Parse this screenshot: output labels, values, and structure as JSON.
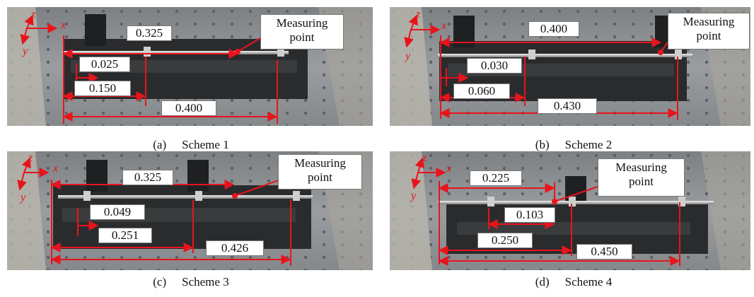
{
  "figure": {
    "panels": [
      {
        "caption_label": "(a)",
        "caption_title": "Scheme 1",
        "measuring_point": [
          "Measuring",
          "point"
        ],
        "dimensions": [
          "0.325",
          "0.025",
          "0.150",
          "0.400"
        ],
        "axes": {
          "z": "z",
          "x": "x",
          "y": "y"
        }
      },
      {
        "caption_label": "(b)",
        "caption_title": "Scheme 2",
        "measuring_point": [
          "Measuring",
          "point"
        ],
        "dimensions": [
          "0.400",
          "0.030",
          "0.060",
          "0.430"
        ],
        "axes": {
          "z": "z",
          "x": "x",
          "y": "y"
        }
      },
      {
        "caption_label": "(c)",
        "caption_title": "Scheme 3",
        "measuring_point": [
          "Measuring",
          "point"
        ],
        "dimensions": [
          "0.325",
          "0.049",
          "0.251",
          "0.426"
        ],
        "axes": {
          "z": "z",
          "x": "x",
          "y": "y"
        }
      },
      {
        "caption_label": "(d)",
        "caption_title": "Scheme 4",
        "measuring_point": [
          "Measuring",
          "point"
        ],
        "dimensions": [
          "0.225",
          "0.103",
          "0.250",
          "0.450"
        ],
        "axes": {
          "z": "z",
          "x": "x",
          "y": "y"
        }
      }
    ],
    "colors": {
      "annotation_red": "#e8141b",
      "bench_dark": "#2a2b2d",
      "table_gray": "#8e9194"
    }
  }
}
